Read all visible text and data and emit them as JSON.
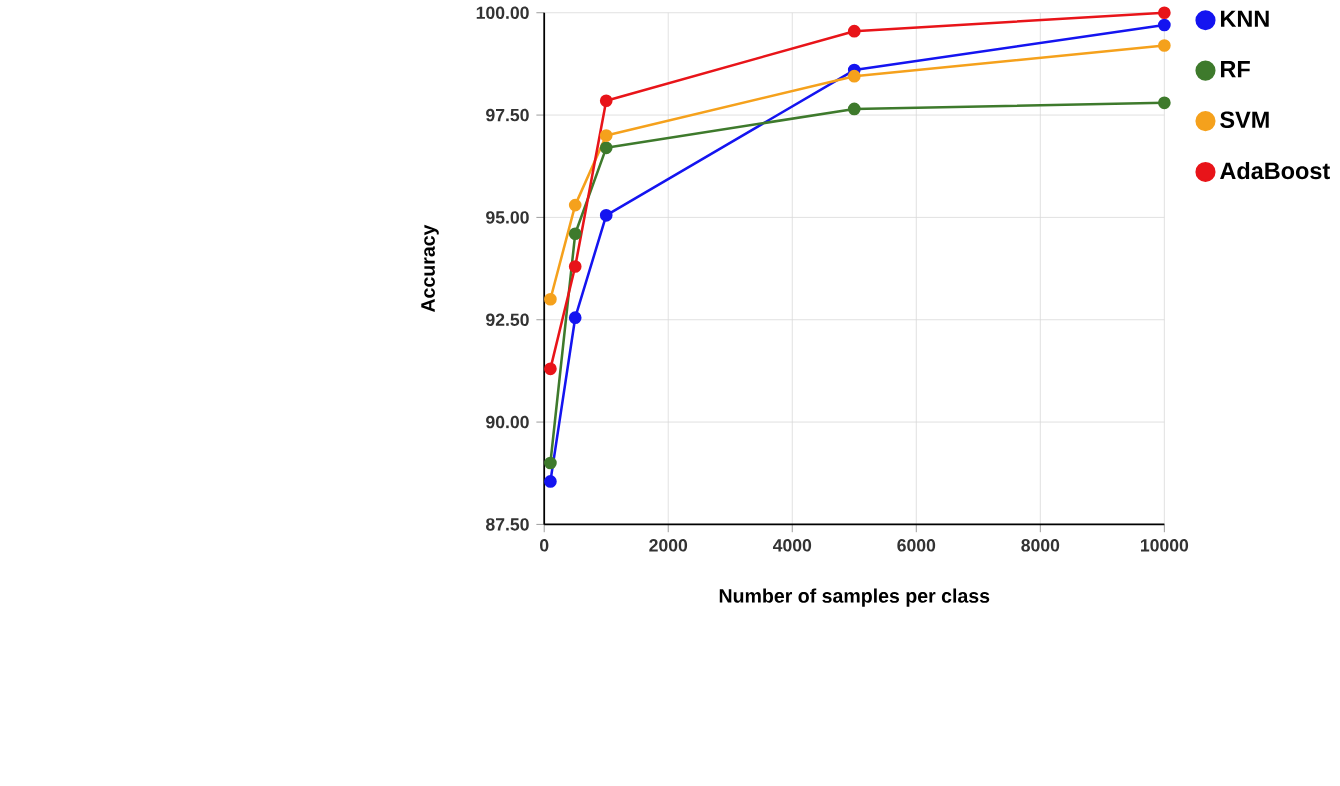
{
  "chart_data": {
    "type": "line",
    "xlabel": "Number of samples per class",
    "ylabel": "Accuracy",
    "x": [
      100,
      500,
      1000,
      5000,
      10000
    ],
    "series": [
      {
        "name": "KNN",
        "color": "#1414f0",
        "values": [
          88.55,
          92.55,
          95.05,
          98.6,
          99.7
        ]
      },
      {
        "name": "RF",
        "color": "#3e7a2c",
        "values": [
          89.0,
          94.6,
          96.7,
          97.65,
          97.8
        ]
      },
      {
        "name": "SVM",
        "color": "#f5a11c",
        "values": [
          93.0,
          95.3,
          97.0,
          98.45,
          99.2
        ]
      },
      {
        "name": "AdaBoost",
        "color": "#e81419",
        "values": [
          91.3,
          93.8,
          97.85,
          99.55,
          100.0
        ]
      }
    ],
    "xlim": [
      0,
      10000
    ],
    "xticks": [
      0,
      2000,
      4000,
      6000,
      8000,
      10000
    ],
    "ylim": [
      87.5,
      100
    ],
    "yticks": [
      {
        "value": 87.5,
        "label": "87.50"
      },
      {
        "value": 90,
        "label": "90.00"
      },
      {
        "value": 92.5,
        "label": "92.50"
      },
      {
        "value": 95,
        "label": "95.00"
      },
      {
        "value": 97.5,
        "label": "97.50"
      },
      {
        "value": 100,
        "label": "100.00"
      }
    ],
    "grid": true,
    "legend": "top right",
    "marker": "circle",
    "line_style": "solid"
  }
}
